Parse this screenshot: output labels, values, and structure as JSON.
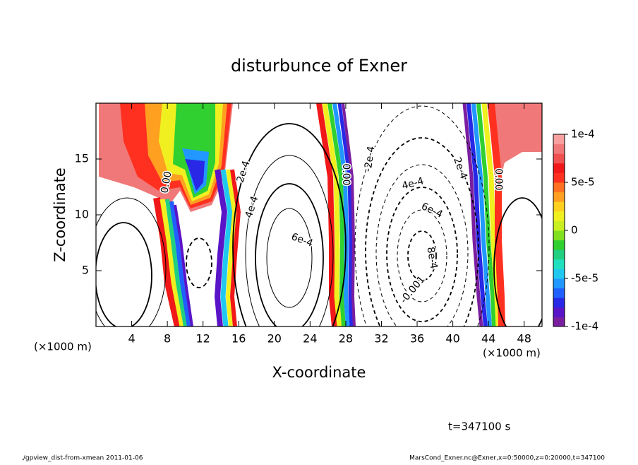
{
  "chart_data": {
    "type": "contour",
    "title": "disturbunce of Exner",
    "xlabel": "X-coordinate",
    "ylabel": "Z-coordinate",
    "xunit": "(×1000 m)",
    "xlim": [
      0,
      50
    ],
    "xticks": [
      4,
      8,
      12,
      16,
      20,
      24,
      28,
      32,
      36,
      40,
      44,
      48
    ],
    "ylim": [
      0,
      20
    ],
    "yticks": [
      5,
      10,
      15
    ],
    "contour_labels": [
      "0.00",
      "2e-4",
      "4e-4",
      "6e-4",
      "0.00",
      "-2e-4",
      "4e-4",
      "6e-4",
      "8e-4",
      "-0.001",
      "2e-4",
      "0.00"
    ],
    "colorbar": {
      "lim": [
        -0.0001,
        0.0001
      ],
      "ticks": [
        {
          "value": 0.0001,
          "label": "1e-4"
        },
        {
          "value": 5e-05,
          "label": "5e-5"
        },
        0,
        {
          "value": -5e-05,
          "label": "-5e-5"
        },
        {
          "value": -0.0001,
          "label": "-1e-4"
        }
      ],
      "colors": [
        "#7a1fa0",
        "#5a14c8",
        "#2828e6",
        "#2060ff",
        "#2098ff",
        "#20c8f0",
        "#20e0c0",
        "#20d080",
        "#30d030",
        "#80e020",
        "#c8f020",
        "#f0f020",
        "#ffd020",
        "#ffa020",
        "#ff7020",
        "#ff3020",
        "#f01818",
        "#f05050",
        "#f07878",
        "#f8a0a0"
      ]
    },
    "time_label": "t=347100 s",
    "footer_left": "./gpview_dist-from-xmean  2011-01-06",
    "footer_right": "MarsCond_Exner.nc@Exner,x=0:50000,z=0:20000,t=347100"
  }
}
